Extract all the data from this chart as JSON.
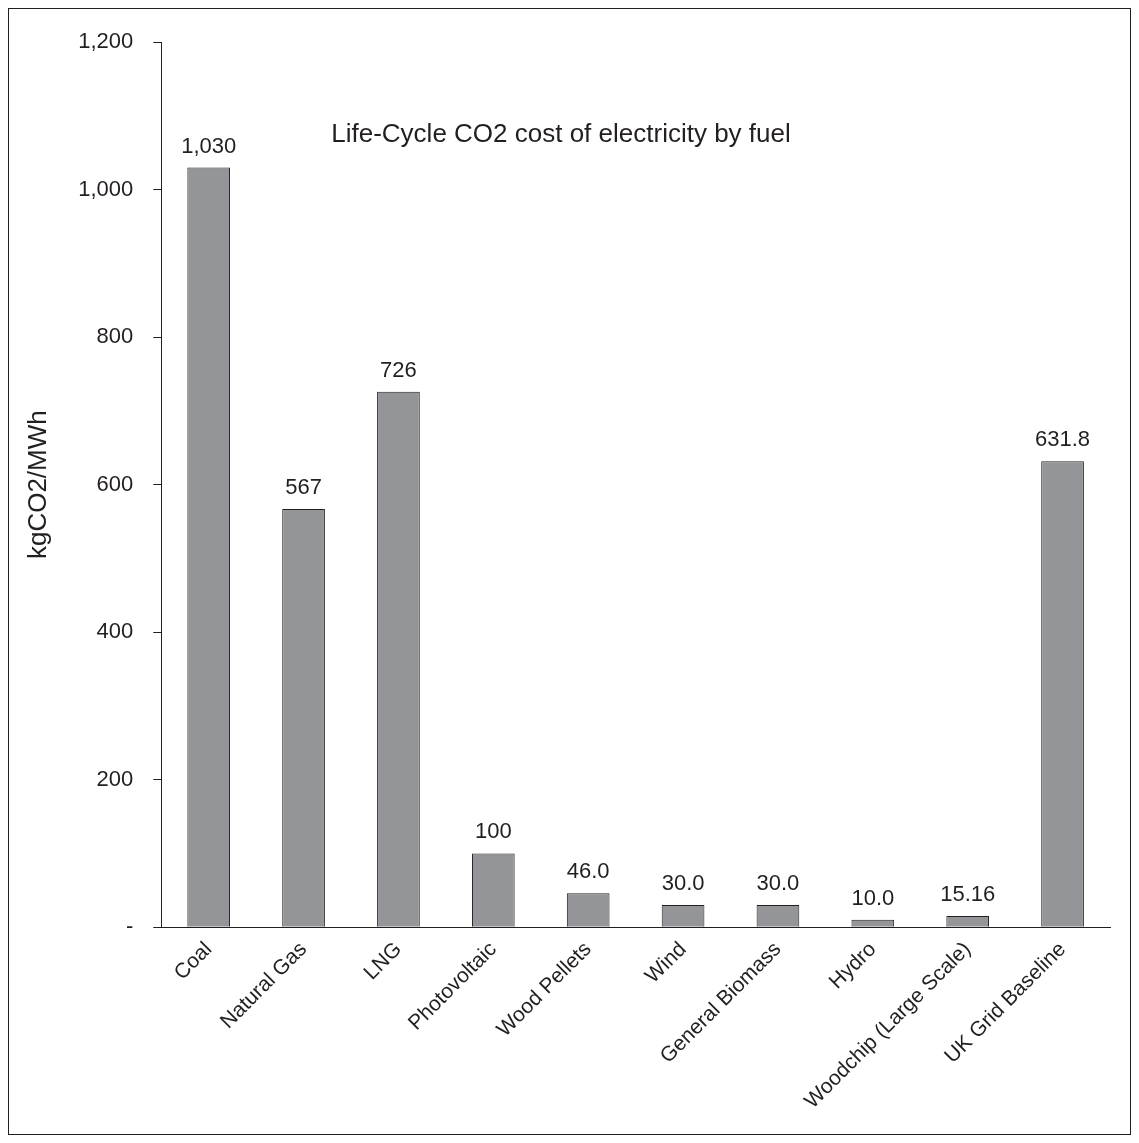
{
  "chart_data": {
    "type": "bar",
    "title": "Life-Cycle CO2 cost of electricity by fuel",
    "ylabel": "kgCO2/MWh",
    "categories": [
      "Coal",
      "Natural Gas",
      "LNG",
      "Photovoltaic",
      "Wood Pellets",
      "Wind",
      "General Biomass",
      "Hydro",
      "Woodchip (Large Scale)",
      "UK Grid Baseline"
    ],
    "values": [
      1030,
      567,
      726,
      100,
      46,
      30,
      30,
      10,
      15.16,
      631.8
    ],
    "value_labels": [
      "1,030",
      "567",
      "726",
      "100",
      "46.0",
      "30.0",
      "30.0",
      "10.0",
      "15.16",
      "631.8"
    ],
    "color": "#939598",
    "ylim": [
      0,
      1200
    ],
    "yticks": [
      {
        "value": 0,
        "label": "-"
      },
      200,
      400,
      600,
      800,
      {
        "value": 1000,
        "label": "1,000"
      },
      {
        "value": 1200,
        "label": "1,200"
      }
    ],
    "grid": false,
    "legend": false
  }
}
